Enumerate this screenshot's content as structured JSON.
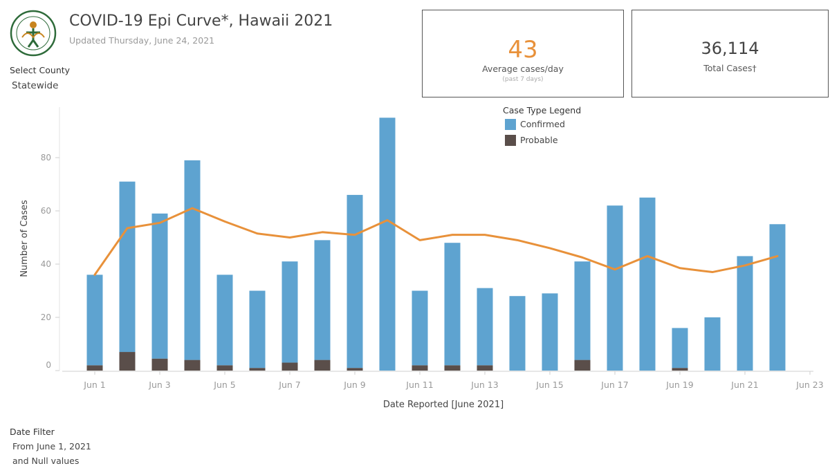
{
  "header": {
    "title": "COVID-19 Epi Curve*, Hawaii 2021",
    "updated": "Updated Thursday, June 24, 2021"
  },
  "county": {
    "label": "Select County",
    "value": "Statewide"
  },
  "kpis": {
    "average": {
      "value": "43",
      "label": "Average cases/day",
      "sublabel": "(past 7 days)"
    },
    "total": {
      "value": "36,114",
      "label": "Total Cases†"
    }
  },
  "legend": {
    "title": "Case Type Legend",
    "items": [
      {
        "label": "Confirmed",
        "color": "#5ea3d0"
      },
      {
        "label": "Probable",
        "color": "#5a4e4a"
      }
    ]
  },
  "date_filter": {
    "label": "Date Filter",
    "line1": "From June 1, 2021",
    "line2": "and Null values"
  },
  "chart_data": {
    "type": "bar",
    "stacked": true,
    "title": "",
    "xlabel": "Date Reported [June 2021]",
    "ylabel": "Number of Cases",
    "ylim": [
      0,
      100
    ],
    "yticks": [
      0,
      20,
      40,
      60,
      80
    ],
    "xlim": [
      1,
      23
    ],
    "xticks": [
      {
        "day": 1,
        "label": "Jun 1"
      },
      {
        "day": 3,
        "label": "Jun 3"
      },
      {
        "day": 5,
        "label": "Jun 5"
      },
      {
        "day": 7,
        "label": "Jun 7"
      },
      {
        "day": 9,
        "label": "Jun 9"
      },
      {
        "day": 11,
        "label": "Jun 11"
      },
      {
        "day": 13,
        "label": "Jun 13"
      },
      {
        "day": 15,
        "label": "Jun 15"
      },
      {
        "day": 17,
        "label": "Jun 17"
      },
      {
        "day": 19,
        "label": "Jun 19"
      },
      {
        "day": 21,
        "label": "Jun 21"
      },
      {
        "day": 23,
        "label": "Jun 23"
      }
    ],
    "x": [
      1,
      2,
      3,
      4,
      5,
      6,
      7,
      8,
      9,
      10,
      11,
      12,
      13,
      14,
      15,
      16,
      17,
      18,
      19,
      20,
      21,
      22
    ],
    "series": [
      {
        "name": "Probable",
        "color": "#5a4e4a",
        "values": [
          2,
          7,
          4.5,
          4,
          2,
          1,
          3,
          4,
          1,
          0,
          2,
          2,
          2,
          0,
          0,
          4,
          0,
          0,
          1,
          0,
          0,
          0
        ]
      },
      {
        "name": "Confirmed",
        "color": "#5ea3d0",
        "values": [
          34,
          64,
          54.5,
          75,
          34,
          29,
          38,
          45,
          65,
          95,
          28,
          46,
          29,
          28,
          29,
          37,
          62,
          65,
          15,
          20,
          43,
          55
        ]
      }
    ],
    "line": {
      "color": "#e8913a",
      "values": [
        36,
        53.5,
        55.5,
        61,
        56,
        51.5,
        50,
        52,
        51,
        56.5,
        49,
        51,
        51,
        49,
        46,
        42.5,
        38,
        43,
        38.5,
        37,
        39.5,
        43
      ]
    }
  }
}
